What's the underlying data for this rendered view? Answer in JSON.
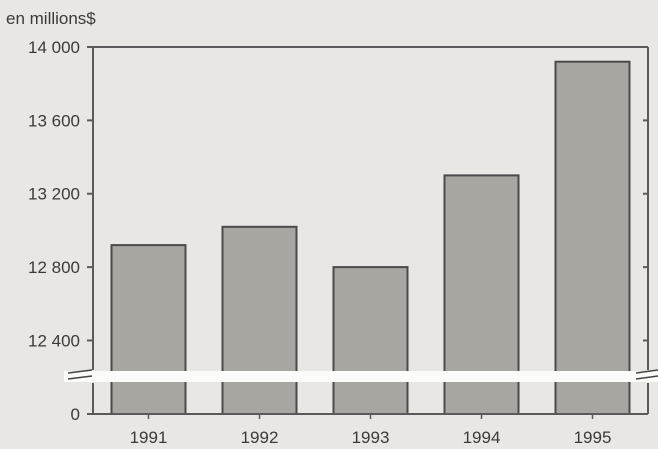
{
  "chart_data": {
    "type": "bar",
    "unit_label": "en millions$",
    "categories": [
      "1991",
      "1992",
      "1993",
      "1994",
      "1995"
    ],
    "values": [
      12920,
      13020,
      12800,
      13300,
      13920
    ],
    "ylim": [
      12250,
      14000
    ],
    "yticks": [
      {
        "value": 12400,
        "label": "12 400"
      },
      {
        "value": 12800,
        "label": "12 800"
      },
      {
        "value": 13200,
        "label": "13 200"
      },
      {
        "value": 13600,
        "label": "13 600"
      },
      {
        "value": 14000,
        "label": "14 000"
      }
    ],
    "axis_break": true,
    "baseline_label": "0",
    "grid": false,
    "colors": {
      "bar": "#a8a6a1",
      "bar_edge": "#4a4a4a",
      "frame": "#5a5a5a",
      "background": "#e9e7e3"
    }
  }
}
